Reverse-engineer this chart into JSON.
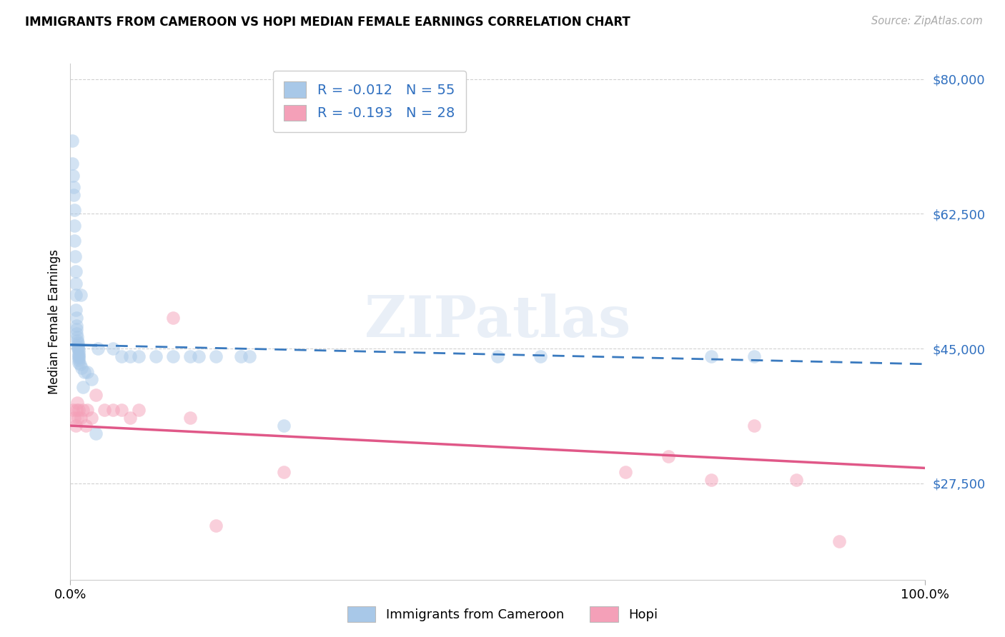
{
  "title": "IMMIGRANTS FROM CAMEROON VS HOPI MEDIAN FEMALE EARNINGS CORRELATION CHART",
  "source": "Source: ZipAtlas.com",
  "ylabel": "Median Female Earnings",
  "yticks": [
    27500,
    45000,
    62500,
    80000
  ],
  "ytick_labels": [
    "$27,500",
    "$45,000",
    "$62,500",
    "$80,000"
  ],
  "xtick_labels": [
    "0.0%",
    "100.0%"
  ],
  "legend1_r": "R = -0.012",
  "legend1_n": "N = 55",
  "legend2_r": "R = -0.193",
  "legend2_n": "N = 28",
  "legend_label1": "Immigrants from Cameroon",
  "legend_label2": "Hopi",
  "color_blue": "#a8c8e8",
  "color_pink": "#f4a0b8",
  "color_blue_line": "#3a7abf",
  "color_pink_line": "#e05888",
  "color_blue_text": "#3070c0",
  "watermark": "ZIPatlas",
  "ylim": [
    15000,
    82000
  ],
  "xlim": [
    0,
    100
  ],
  "blue_x": [
    0.2,
    0.25,
    0.3,
    0.35,
    0.4,
    0.45,
    0.5,
    0.5,
    0.55,
    0.6,
    0.6,
    0.65,
    0.65,
    0.7,
    0.7,
    0.75,
    0.75,
    0.8,
    0.8,
    0.85,
    0.85,
    0.9,
    0.9,
    0.95,
    0.95,
    0.95,
    1.0,
    1.0,
    1.0,
    1.0,
    1.1,
    1.2,
    1.3,
    1.5,
    1.6,
    2.0,
    2.5,
    3.0,
    3.2,
    5.0,
    6.0,
    7.0,
    8.0,
    10.0,
    12.0,
    14.0,
    15.0,
    17.0,
    20.0,
    21.0,
    25.0,
    50.0,
    55.0,
    75.0,
    80.0
  ],
  "blue_y": [
    72000,
    69000,
    67500,
    66000,
    65000,
    63000,
    61000,
    59000,
    57000,
    55000,
    53500,
    52000,
    50000,
    49000,
    48000,
    47500,
    47000,
    46500,
    46000,
    45800,
    45500,
    45200,
    45000,
    44800,
    44500,
    44200,
    44000,
    43800,
    43500,
    43200,
    43000,
    52000,
    42500,
    40000,
    42000,
    42000,
    41000,
    34000,
    45000,
    45000,
    44000,
    44000,
    44000,
    44000,
    44000,
    44000,
    44000,
    44000,
    44000,
    44000,
    35000,
    44000,
    44000,
    44000,
    44000
  ],
  "pink_x": [
    0.3,
    0.5,
    0.6,
    0.7,
    0.8,
    0.9,
    1.0,
    1.2,
    1.5,
    1.8,
    2.0,
    2.5,
    3.0,
    4.0,
    5.0,
    6.0,
    7.0,
    8.0,
    12.0,
    14.0,
    17.0,
    25.0,
    65.0,
    70.0,
    75.0,
    80.0,
    85.0,
    90.0
  ],
  "pink_y": [
    37000,
    36000,
    35000,
    37000,
    38000,
    36000,
    37000,
    36000,
    37000,
    35000,
    37000,
    36000,
    39000,
    37000,
    37000,
    37000,
    36000,
    37000,
    49000,
    36000,
    22000,
    29000,
    29000,
    31000,
    28000,
    35000,
    28000,
    20000
  ],
  "blue_line_x0": 0,
  "blue_line_y0": 45500,
  "blue_line_x1": 100,
  "blue_line_y1": 43000,
  "pink_line_x0": 0,
  "pink_line_y0": 35000,
  "pink_line_x1": 100,
  "pink_line_y1": 29500
}
